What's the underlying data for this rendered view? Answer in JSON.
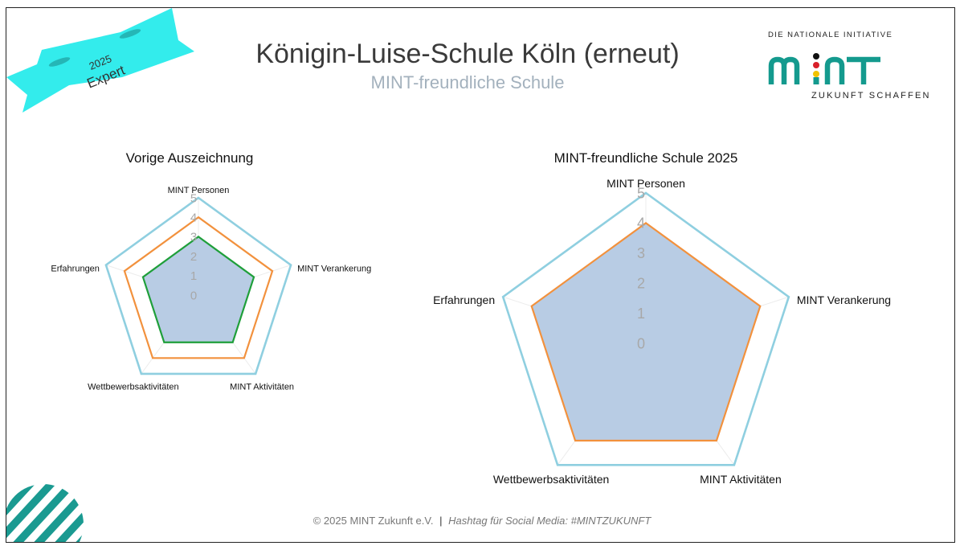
{
  "header": {
    "title": "Königin-Luise-Schule Köln (erneut)",
    "subtitle": "MINT-freundliche Schule"
  },
  "ribbon": {
    "year": "2025",
    "level": "Expert",
    "color": "#33ecec"
  },
  "logo": {
    "top_text": "DIE NATIONALE INITIATIVE",
    "word": "mint",
    "bottom_text": "ZUKUNFT SCHAFFEN",
    "color": "#149a8e"
  },
  "footer": {
    "copyright": "© 2025 MINT Zukunft e.V.",
    "separator": "|",
    "hashtag": "Hashtag für Social Media: #MINTZUKUNFT"
  },
  "colors": {
    "outline5": "#8fcfe0",
    "orange": "#f2913d",
    "green": "#1f9f3a",
    "fill": "#b8cce4",
    "decor": "#1a9a91"
  },
  "chart_data": [
    {
      "type": "radar",
      "title": "Vorige Auszeichnung",
      "axes": [
        "MINT Personen",
        "MINT Verankerung",
        "MINT Aktivitäten",
        "Wettbewerbsaktivitäten",
        "Erfahrungen"
      ],
      "rlim": [
        0,
        5
      ],
      "ticks": [
        "0",
        "1",
        "2",
        "3",
        "4",
        "5"
      ],
      "series": [
        {
          "values": [
            5,
            5,
            5,
            5,
            5
          ],
          "color": "#8fcfe0"
        },
        {
          "values": [
            4,
            4,
            4,
            4,
            4
          ],
          "color": "#f2913d"
        },
        {
          "values": [
            3,
            3,
            3,
            3,
            3
          ],
          "color": "#1f9f3a",
          "fill": "#b8cce4"
        }
      ]
    },
    {
      "type": "radar",
      "title": "MINT-freundliche Schule 2025",
      "axes": [
        "MINT Personen",
        "MINT Verankerung",
        "MINT Aktivitäten",
        "Wettbewerbsaktivitäten",
        "Erfahrungen"
      ],
      "rlim": [
        0,
        5
      ],
      "ticks": [
        "0",
        "1",
        "2",
        "3",
        "4",
        "5"
      ],
      "series": [
        {
          "values": [
            5,
            5,
            5,
            5,
            5
          ],
          "color": "#8fcfe0"
        },
        {
          "values": [
            4,
            4,
            4,
            4,
            4
          ],
          "color": "#f2913d",
          "fill": "#b8cce4"
        }
      ]
    }
  ]
}
